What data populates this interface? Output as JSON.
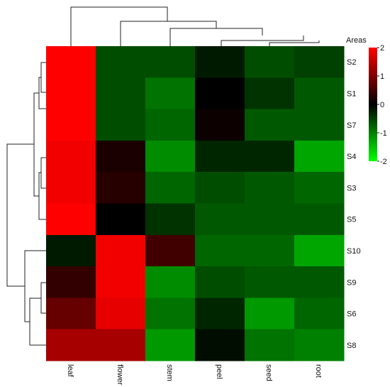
{
  "chart_data": {
    "type": "heatmap",
    "title": "",
    "xlabel": "",
    "ylabel": "",
    "columns": [
      "leaf",
      "flower",
      "stem",
      "peel",
      "seed",
      "root"
    ],
    "rows": [
      "S2",
      "S1",
      "S7",
      "S4",
      "S3",
      "S5",
      "S10",
      "S9",
      "S6",
      "S8"
    ],
    "values": [
      [
        2.0,
        -0.6,
        -0.6,
        -0.2,
        -0.6,
        -0.5
      ],
      [
        2.0,
        -0.6,
        -0.9,
        0.0,
        -0.4,
        -0.7
      ],
      [
        2.0,
        -0.6,
        -0.8,
        0.1,
        -0.7,
        -0.7
      ],
      [
        1.9,
        0.2,
        -1.1,
        -0.3,
        -0.3,
        -1.3
      ],
      [
        1.9,
        0.3,
        -0.8,
        -0.6,
        -0.7,
        -0.8
      ],
      [
        2.0,
        0.0,
        -0.4,
        -0.7,
        -0.7,
        -0.7
      ],
      [
        -0.2,
        1.9,
        0.5,
        -0.8,
        -0.8,
        -1.3
      ],
      [
        0.4,
        1.9,
        -1.1,
        -0.6,
        -0.7,
        -0.7
      ],
      [
        0.8,
        1.8,
        -0.9,
        -0.3,
        -1.2,
        -0.8
      ],
      [
        1.3,
        1.3,
        -1.2,
        -0.1,
        -0.9,
        -1.0
      ]
    ],
    "color_scale": {
      "min": -2,
      "max": 2,
      "low_color": "#00ff00",
      "mid_color": "#000000",
      "high_color": "#ff0000",
      "ticks": [
        "2",
        "1",
        "0",
        "-1",
        "-2"
      ]
    },
    "legend_title": "Areas",
    "legend_position": "top-right",
    "column_dendrogram": true,
    "row_dendrogram": true
  }
}
